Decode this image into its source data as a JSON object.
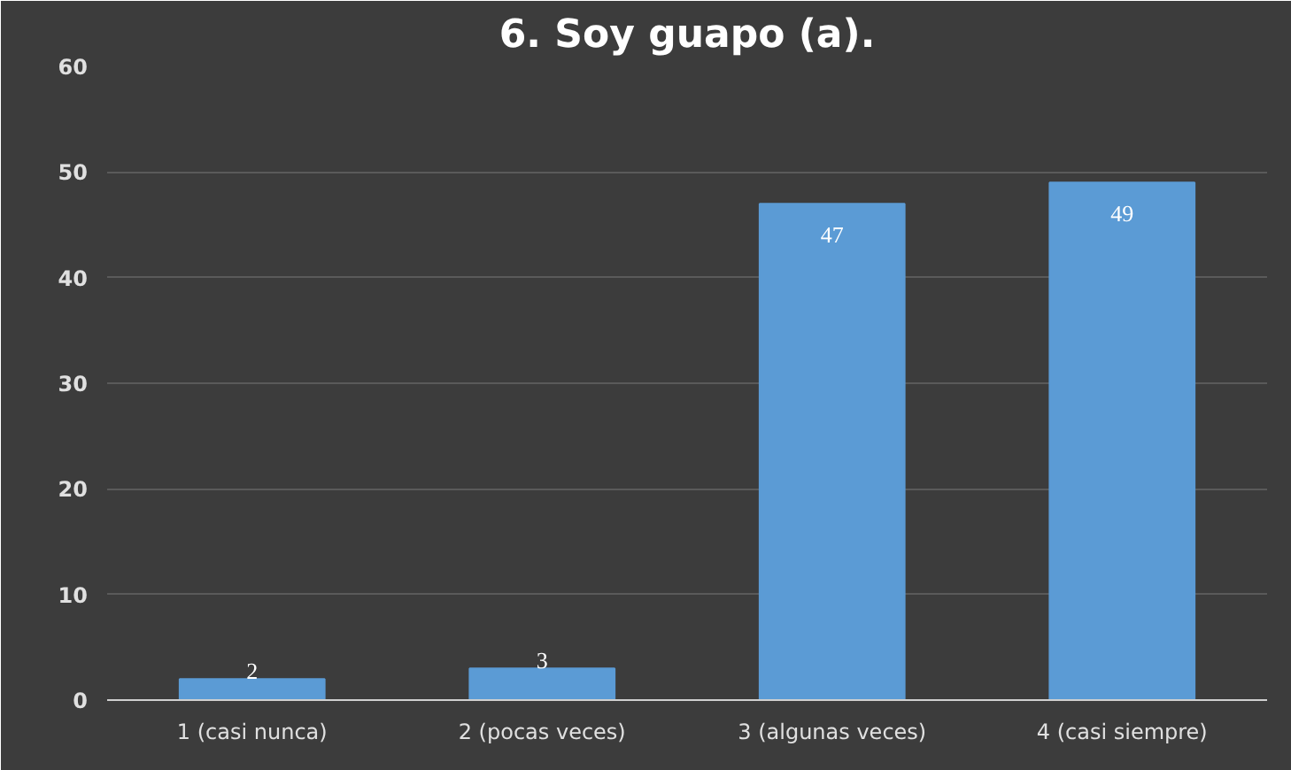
{
  "chart_data": {
    "type": "bar",
    "title": "6. Soy guapo (a).",
    "categories": [
      "1 (casi nunca)",
      "2 (pocas veces)",
      "3 (algunas veces)",
      "4 (casi siempre)"
    ],
    "values": [
      2,
      3,
      47,
      49
    ],
    "color": "#5b9bd5",
    "ylim": [
      0,
      60
    ],
    "yticks": [
      0,
      10,
      20,
      30,
      40,
      50,
      60
    ],
    "grid": "y",
    "data_labels": true
  }
}
